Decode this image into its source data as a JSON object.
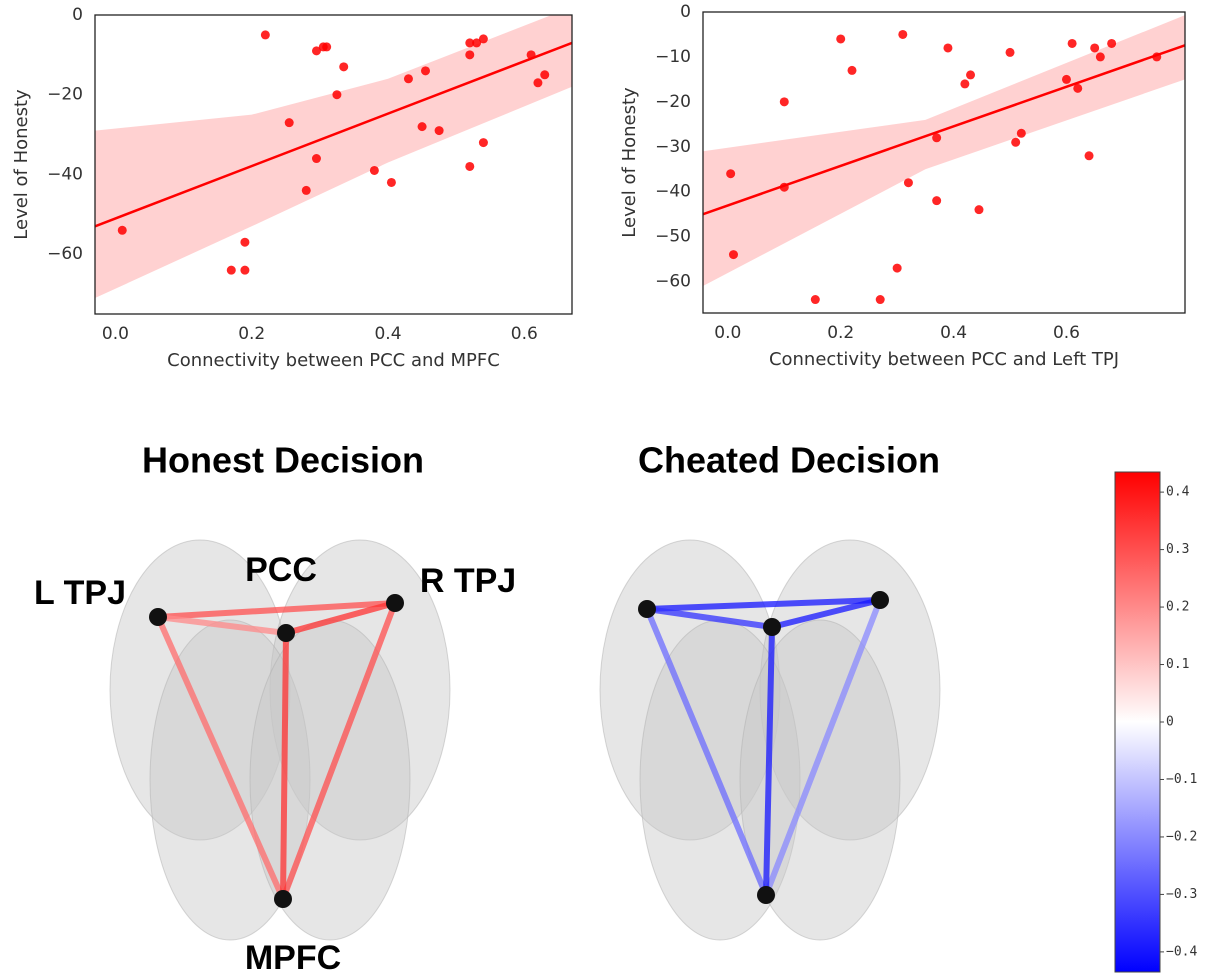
{
  "chart_data": [
    {
      "type": "scatter",
      "x_label": "Connectivity between PCC and MPFC",
      "y_label": "Level of Honesty",
      "color": "#ff0000",
      "xlim": [
        -0.03,
        0.67
      ],
      "ylim": [
        -75,
        0
      ],
      "xticks": [
        {
          "value": 0,
          "label": "0.0"
        },
        0.2,
        0.4,
        0.6
      ],
      "yticks": [
        0,
        {
          "value": -20,
          "label": "−20"
        },
        {
          "value": -40,
          "label": "−40"
        },
        {
          "value": -60,
          "label": "−60"
        }
      ],
      "x": [
        0.01,
        0.22,
        0.17,
        0.19,
        0.19,
        0.255,
        0.28,
        0.295,
        0.295,
        0.305,
        0.31,
        0.325,
        0.335,
        0.38,
        0.405,
        0.43,
        0.45,
        0.455,
        0.475,
        0.52,
        0.52,
        0.53,
        0.52,
        0.54,
        0.54,
        0.61,
        0.62,
        0.63
      ],
      "values": [
        -54,
        -5,
        -64,
        -64,
        -57,
        -27,
        -44,
        -9,
        -36,
        -8,
        -8,
        -20,
        -13,
        -39,
        -42,
        -16,
        -28,
        -14,
        -29,
        -10,
        -7,
        -7,
        -38,
        -6,
        -32,
        -10,
        -17,
        -15
      ],
      "fit": {
        "x": [
          -0.03,
          0.67
        ],
        "values": [
          -53,
          -7
        ]
      },
      "band": {
        "x": [
          -0.03,
          0.2,
          0.4,
          0.67
        ],
        "upper": [
          -29,
          -25,
          -16,
          2
        ],
        "lower": [
          -71,
          -53,
          -37,
          -18
        ]
      }
    },
    {
      "type": "scatter",
      "x_label": "Connectivity between PCC and Left TPJ",
      "y_label": "Level of Honesty",
      "color": "#ff0000",
      "xlim": [
        -0.044,
        0.81
      ],
      "ylim": [
        -67,
        0
      ],
      "xticks": [
        {
          "value": 0,
          "label": "0.0"
        },
        0.2,
        0.4,
        0.6
      ],
      "yticks": [
        0,
        {
          "value": -10,
          "label": "−10"
        },
        {
          "value": -20,
          "label": "−20"
        },
        {
          "value": -30,
          "label": "−30"
        },
        {
          "value": -40,
          "label": "−40"
        },
        {
          "value": -50,
          "label": "−50"
        },
        {
          "value": -60,
          "label": "−60"
        }
      ],
      "x": [
        0.005,
        0.01,
        0.1,
        0.1,
        0.155,
        0.2,
        0.22,
        0.27,
        0.3,
        0.31,
        0.32,
        0.37,
        0.37,
        0.39,
        0.42,
        0.43,
        0.445,
        0.5,
        0.51,
        0.52,
        0.6,
        0.61,
        0.62,
        0.64,
        0.65,
        0.66,
        0.68,
        0.76
      ],
      "values": [
        -36,
        -54,
        -20,
        -39,
        -64,
        -6,
        -13,
        -64,
        -57,
        -5,
        -38,
        -28,
        -42,
        -8,
        -16,
        -14,
        -44,
        -9,
        -29,
        -27,
        -15,
        -7,
        -17,
        -32,
        -8,
        -10,
        -7,
        -10
      ],
      "fit": {
        "x": [
          -0.044,
          0.81
        ],
        "values": [
          -45,
          -7.4
        ]
      },
      "band": {
        "x": [
          -0.044,
          0.35,
          0.81
        ],
        "upper": [
          -31,
          -24,
          -0.7
        ],
        "lower": [
          -61,
          -35,
          -15
        ]
      }
    },
    {
      "type": "network",
      "title": "Honest Decision",
      "nodes": [
        "L TPJ",
        "PCC",
        "R TPJ",
        "MPFC"
      ],
      "edges": [
        {
          "from": 0,
          "to": 2,
          "value": 0.3
        },
        {
          "from": 0,
          "to": 1,
          "value": 0.2
        },
        {
          "from": 1,
          "to": 2,
          "value": 0.35
        },
        {
          "from": 0,
          "to": 3,
          "value": 0.25
        },
        {
          "from": 2,
          "to": 3,
          "value": 0.3
        },
        {
          "from": 1,
          "to": 3,
          "value": 0.35
        }
      ]
    },
    {
      "type": "network",
      "title": "Cheated Decision",
      "edges": [
        {
          "from": 0,
          "to": 2,
          "value": -0.4
        },
        {
          "from": 0,
          "to": 1,
          "value": -0.35
        },
        {
          "from": 1,
          "to": 2,
          "value": -0.4
        },
        {
          "from": 0,
          "to": 3,
          "value": -0.25
        },
        {
          "from": 2,
          "to": 3,
          "value": -0.2
        },
        {
          "from": 1,
          "to": 3,
          "value": -0.4
        }
      ]
    },
    {
      "type": "colorbar",
      "colors": [
        "#0000ff",
        "#ffffff",
        "#ff0000"
      ],
      "ylim": [
        -0.435,
        0.435
      ],
      "yticks": [
        0.4,
        0.3,
        0.2,
        0.1,
        0,
        {
          "value": -0.1,
          "label": "−0.1"
        },
        {
          "value": -0.2,
          "label": "−0.2"
        },
        {
          "value": -0.3,
          "label": "−0.3"
        },
        {
          "value": -0.4,
          "label": "−0.4"
        }
      ]
    }
  ]
}
